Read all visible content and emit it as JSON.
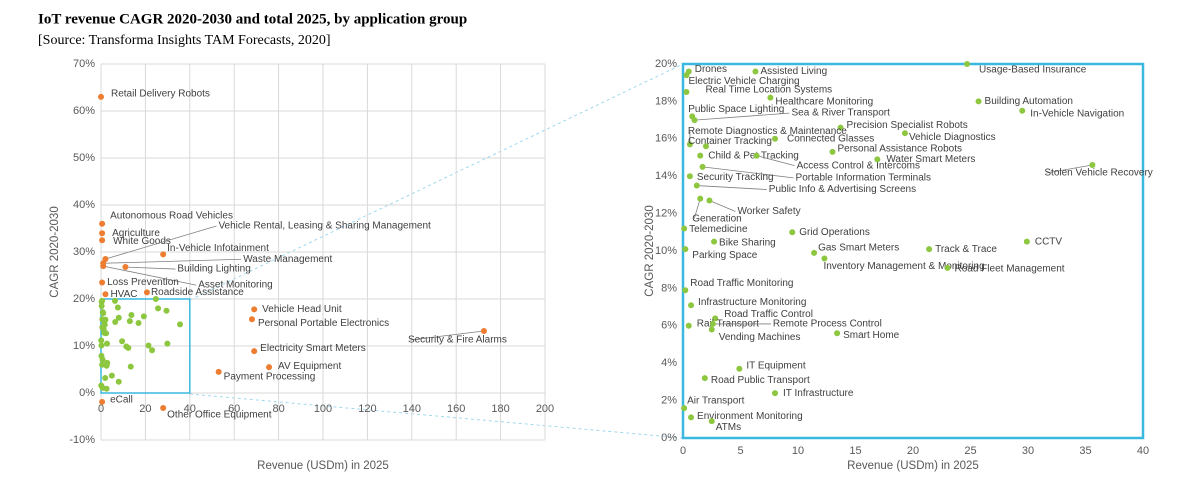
{
  "header": {
    "title": "IoT revenue CAGR 2020-2030 and total 2025, by application group",
    "source": "[Source: Transforma Insights TAM Forecasts, 2020]"
  },
  "chart_data": [
    {
      "type": "scatter",
      "xlabel": "Revenue (USDm) in 2025",
      "ylabel": "CAGR 2020-2030",
      "xlim": [
        0,
        200
      ],
      "xticks": [
        0,
        20,
        40,
        60,
        80,
        100,
        120,
        140,
        160,
        180,
        200
      ],
      "ylim": [
        -10,
        70
      ],
      "yticks": [
        {
          "value": -10,
          "label": "-10%"
        },
        {
          "value": 0,
          "label": "0%"
        },
        {
          "value": 10,
          "label": "10%"
        },
        {
          "value": 20,
          "label": "20%"
        },
        {
          "value": 30,
          "label": "30%"
        },
        {
          "value": 40,
          "label": "40%"
        },
        {
          "value": 50,
          "label": "50%"
        },
        {
          "value": 60,
          "label": "60%"
        },
        {
          "value": 70,
          "label": "70%"
        }
      ],
      "grid": true,
      "series": [
        {
          "color": "#ed7d31",
          "labels": [
            "Retail Delivery Robots",
            "Autonomous Road Vehicles",
            "Agriculture",
            "White Goods",
            "In-Vehicle Infotainment",
            "Vehicle Rental, Leasing & Sharing Management",
            "Waste Management",
            "Building Lighting",
            "Asset Monitoring",
            "Loss Prevention",
            "HVAC",
            "Roadside Assistance",
            "Vehicle Head Unit",
            "Personal Portable Electronics",
            "Security & Fire Alarms",
            "Electricity Smart Meters",
            "AV Equipment",
            "Payment Processing",
            "eCall",
            "Other Office Equipment"
          ],
          "x": [
            0,
            0.5,
            0.5,
            0.5,
            28,
            2,
            1,
            11,
            1,
            0.5,
            2,
            20.7,
            69,
            68,
            172.5,
            69,
            75.7,
            53,
            0.5,
            28
          ],
          "y": [
            63,
            36,
            34,
            32.5,
            29.5,
            28.5,
            27.6,
            26.8,
            27,
            23.5,
            21,
            21.4,
            17.8,
            15.7,
            13.2,
            8.9,
            5.5,
            4.5,
            -1.9,
            -3.2
          ]
        },
        {
          "color": "#8dc63f",
          "x": [
            0.5,
            0.3,
            6.3,
            24.7,
            0.3,
            7.6,
            25.7,
            29.5,
            0.8,
            1.0,
            13.7,
            0.6,
            19.3,
            8.0,
            2.0,
            13.0,
            1.5,
            6.4,
            16.9,
            1.7,
            35.6,
            0.6,
            1.2,
            1.5,
            2.3,
            0.1,
            9.5,
            2.7,
            0.2,
            11.4,
            21.4,
            29.9,
            12.3,
            23.0,
            0.2,
            0.7,
            2.8,
            0.5,
            2.6,
            2.5,
            13.4,
            4.9,
            1.9,
            8.0,
            0.1,
            0.7,
            2.5
          ],
          "y": [
            19.6,
            19.4,
            19.6,
            20.0,
            18.5,
            18.2,
            18.0,
            17.5,
            17.2,
            17.0,
            16.6,
            15.7,
            16.3,
            16.0,
            15.6,
            15.3,
            15.1,
            15.1,
            14.9,
            14.5,
            14.6,
            14.0,
            13.5,
            12.8,
            12.7,
            11.2,
            11.0,
            10.5,
            10.1,
            9.9,
            10.1,
            10.5,
            9.6,
            9.1,
            7.9,
            7.1,
            6.4,
            6.0,
            6.1,
            5.8,
            5.6,
            3.7,
            3.2,
            2.4,
            1.6,
            1.1,
            0.9
          ]
        }
      ]
    },
    {
      "type": "scatter",
      "xlabel": "Revenue (USDm) in 2025",
      "ylabel": "CAGR 2020-2030",
      "xlim": [
        0,
        40
      ],
      "xticks": [
        0,
        5,
        10,
        15,
        20,
        25,
        30,
        35,
        40
      ],
      "ylim": [
        0,
        20
      ],
      "yticks": [
        {
          "value": 0,
          "label": "0%"
        },
        {
          "value": 2,
          "label": "2%"
        },
        {
          "value": 4,
          "label": "4%"
        },
        {
          "value": 6,
          "label": "6%"
        },
        {
          "value": 8,
          "label": "8%"
        },
        {
          "value": 10,
          "label": "10%"
        },
        {
          "value": 12,
          "label": "12%"
        },
        {
          "value": 14,
          "label": "14%"
        },
        {
          "value": 16,
          "label": "16%"
        },
        {
          "value": 18,
          "label": "18%"
        },
        {
          "value": 20,
          "label": "20%"
        }
      ],
      "grid": false,
      "series": [
        {
          "color": "#8dc63f",
          "labels": [
            "Drones",
            "Electric Vehicle Charging",
            "Assisted Living",
            "Usage-Based Insurance",
            "Real Time Location Systems",
            "Healthcare Monitoring",
            "Building Automation",
            "In-Vehicle Navigation",
            "Public Space Lighting",
            "Sea & River Transport",
            "Precision Specialist Robots",
            "Remote Diagnostics & Maintenance",
            "Vehicle Diagnostics",
            "Connected Glasses",
            "Container Tracking",
            "Personal Assistance Robots",
            "Child & Pet Tracking",
            "Access Control & Intercoms",
            "Water Smart Meters",
            "Portable Information Terminals",
            "Stolen Vehicle Recovery",
            "Security Tracking",
            "Public Info & Advertising Screens",
            "Generation",
            "Worker Safety",
            "Telemedicine",
            "Grid Operations",
            "Bike Sharing",
            "Parking Space",
            "Gas Smart Meters",
            "Track & Trace",
            "CCTV",
            "Inventory Management & Monitoring",
            "Road Fleet Management",
            "Road Traffic Monitoring",
            "Infrastructure Monitoring",
            "Road Traffic Control",
            "Rail Transport",
            "Remote Process Control",
            "Vending Machines",
            "Smart Home",
            "IT Equipment",
            "Road Public Transport",
            "IT Infrastructure",
            "Air Transport",
            "Environment Monitoring",
            "ATMs"
          ],
          "x": [
            0.5,
            0.3,
            6.3,
            24.7,
            0.3,
            7.6,
            25.7,
            29.5,
            0.8,
            1.0,
            13.7,
            0.6,
            19.3,
            8.0,
            2.0,
            13.0,
            1.5,
            6.4,
            16.9,
            1.7,
            35.6,
            0.6,
            1.2,
            1.5,
            2.3,
            0.1,
            9.5,
            2.7,
            0.2,
            11.4,
            21.4,
            29.9,
            12.3,
            23.0,
            0.2,
            0.7,
            2.8,
            0.5,
            2.6,
            2.5,
            13.4,
            4.9,
            1.9,
            8.0,
            0.1,
            0.7,
            2.5
          ],
          "y": [
            19.6,
            19.4,
            19.6,
            20.0,
            18.5,
            18.2,
            18.0,
            17.5,
            17.2,
            17.0,
            16.6,
            15.7,
            16.3,
            16.0,
            15.6,
            15.3,
            15.1,
            15.1,
            14.9,
            14.5,
            14.6,
            14.0,
            13.5,
            12.8,
            12.7,
            11.2,
            11.0,
            10.5,
            10.1,
            9.9,
            10.1,
            10.5,
            9.6,
            9.1,
            7.9,
            7.1,
            6.4,
            6.0,
            6.1,
            5.8,
            5.6,
            3.7,
            3.2,
            2.4,
            1.6,
            1.1,
            0.9
          ]
        }
      ]
    }
  ]
}
